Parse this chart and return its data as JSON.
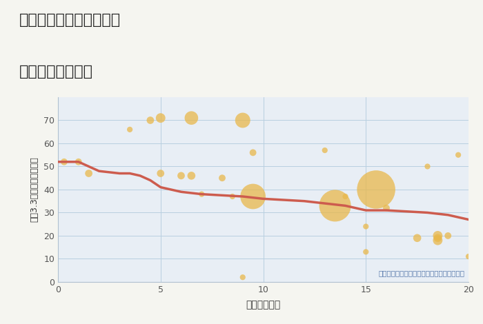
{
  "title_line1": "奈良県奈良市興隆寺町の",
  "title_line2": "駅距離別土地価格",
  "xlabel": "駅距離（分）",
  "ylabel": "坪（3.3㎡）単価（万円）",
  "annotation": "円の大きさは、取引のあった物件面積を示す",
  "background_color": "#f5f5f0",
  "plot_bg_color": "#e8eef5",
  "scatter_color": "#e8b84b",
  "scatter_alpha": 0.75,
  "line_color": "#cd5c4e",
  "line_width": 2.5,
  "xlim": [
    0,
    20
  ],
  "ylim": [
    0,
    80
  ],
  "scatter_x": [
    0.3,
    1.0,
    1.5,
    3.5,
    4.5,
    5.0,
    5.0,
    6.0,
    6.5,
    6.5,
    7.0,
    8.0,
    8.5,
    9.0,
    9.0,
    9.5,
    9.5,
    13.0,
    13.5,
    14.0,
    15.0,
    15.0,
    15.5,
    16.0,
    17.5,
    18.0,
    18.5,
    18.5,
    18.5,
    19.0,
    19.5,
    20.0
  ],
  "scatter_y": [
    52,
    52,
    47,
    66,
    70,
    71,
    47,
    46,
    46,
    71,
    38,
    45,
    37,
    70,
    2,
    37,
    56,
    57,
    33,
    37,
    13,
    24,
    40,
    32,
    19,
    50,
    18,
    20,
    19,
    20,
    55,
    11
  ],
  "scatter_s": [
    50,
    50,
    60,
    35,
    60,
    100,
    60,
    60,
    70,
    200,
    35,
    50,
    35,
    250,
    35,
    700,
    50,
    35,
    1100,
    35,
    35,
    35,
    1600,
    50,
    70,
    35,
    100,
    100,
    70,
    50,
    35,
    35
  ],
  "line_x": [
    0,
    0.5,
    1,
    1.5,
    2,
    3,
    3.5,
    4,
    4.5,
    5,
    5.5,
    6,
    7,
    8,
    9,
    10,
    11,
    12,
    13,
    14,
    15,
    16,
    17,
    18,
    19,
    20
  ],
  "line_y": [
    52,
    52,
    52,
    50,
    48,
    47,
    47,
    46,
    44,
    41,
    40,
    39,
    38,
    37.5,
    37,
    36,
    35.5,
    35,
    34,
    33,
    31,
    31,
    30.5,
    30,
    29,
    27
  ],
  "xticks": [
    0,
    5,
    10,
    15,
    20
  ],
  "yticks": [
    0,
    10,
    20,
    30,
    40,
    50,
    60,
    70
  ]
}
